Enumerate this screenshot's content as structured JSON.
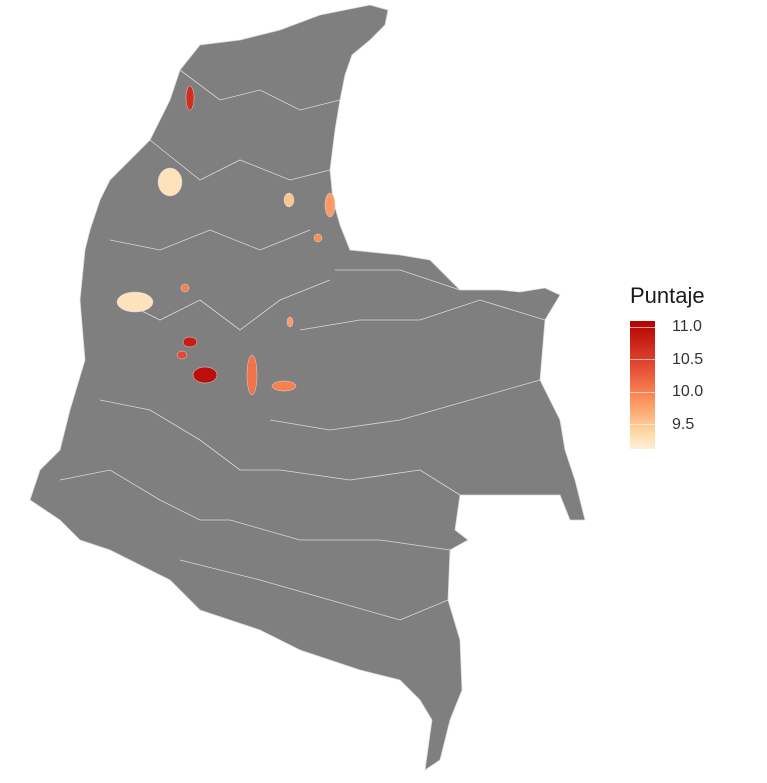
{
  "chart_data": {
    "type": "choropleth",
    "legend": {
      "title": "Puntaje",
      "ticks": [
        "11.0",
        "10.5",
        "10.0",
        "9.5"
      ],
      "range": [
        9.2,
        11.1
      ],
      "colors": {
        "low": "#fef0d9",
        "high": "#b30000"
      },
      "placement": "right"
    },
    "base_fill": "#7f7f7f",
    "boundary_color": "#d9d9d9",
    "highlighted_values": [
      9.4,
      9.4,
      10.8,
      11.0,
      10.9,
      10.3,
      10.2,
      10.0,
      9.7,
      10.2,
      10.6,
      10.1,
      10.0
    ]
  }
}
